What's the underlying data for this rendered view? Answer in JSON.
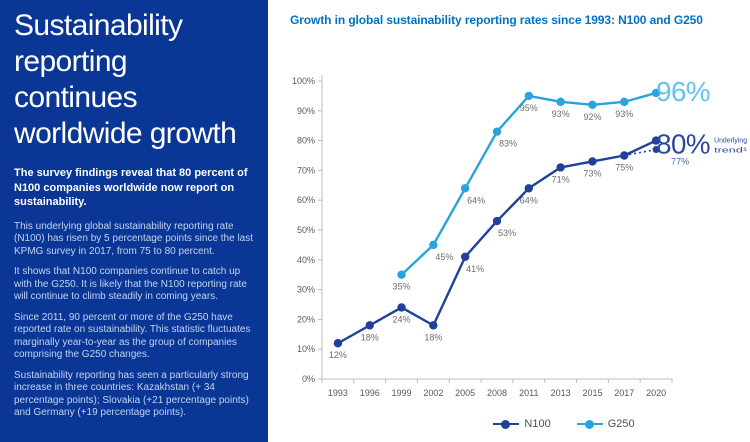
{
  "left_panel": {
    "background": "#0a3796",
    "title_lines": [
      "Sustainability",
      "reporting",
      "continues",
      "worldwide growth"
    ],
    "lead": "The survey findings reveal that 80 percent of N100 companies worldwide now report on sustainability.",
    "paragraphs": [
      "This underlying global sustainability reporting rate (N100) has risen by 5 percentage points since the last KPMG survey in 2017, from 75 to 80 percent.",
      "It shows that N100 companies continue to catch up with the G250. It is likely that the N100 reporting rate will continue to climb steadily in coming years.",
      "Since 2011, 90 percent or more of the G250 have reported rate on sustainability. This statistic fluctuates marginally year-to-year as the group of companies comprising the G250 changes.",
      "Sustainability reporting has seen a particularly strong increase in three countries: Kazakhstan (+ 34 percentage points); Slovakia (+21 percentage points) and Germany (+19 percentage points)."
    ]
  },
  "chart": {
    "title": "Growth in global sustainability reporting rates since 1993: N100 and G250",
    "title_color": "#0072c6"
  },
  "chart_data": {
    "type": "line",
    "title": "Growth in global sustainability reporting rates since 1993: N100 and G250",
    "categories": [
      "1993",
      "1996",
      "1999",
      "2002",
      "2005",
      "2008",
      "2011",
      "2013",
      "2015",
      "2017",
      "2020"
    ],
    "series": [
      {
        "name": "N100",
        "color": "#21409a",
        "values": [
          12,
          18,
          24,
          18,
          41,
          53,
          64,
          71,
          73,
          75,
          80
        ],
        "labels": [
          "12%",
          "18%",
          "24%",
          "18%",
          "41%",
          "53%",
          "64%",
          "71%",
          "73%",
          "75%",
          ""
        ]
      },
      {
        "name": "G250",
        "color": "#29a3dc",
        "values": [
          null,
          null,
          35,
          45,
          64,
          83,
          95,
          93,
          92,
          93,
          96
        ],
        "labels": [
          "",
          "",
          "35%",
          "45%",
          "64%",
          "83%",
          "95%",
          "93%",
          "92%",
          "93%",
          ""
        ]
      }
    ],
    "underlying_trend": {
      "from_category": "2017",
      "from_value": 75,
      "category": "2020",
      "value": 77,
      "label": "77%",
      "label_color": "#4a69b4",
      "note_lines": [
        "Underlying",
        "trend¹"
      ]
    },
    "highlights": [
      {
        "series": "G250",
        "text": "96%",
        "color": "#5fc4ee"
      },
      {
        "series": "N100",
        "text": "80%",
        "color": "#2b479f"
      }
    ],
    "xlabel": "",
    "ylabel": "",
    "ylim": [
      0,
      100
    ],
    "ytick_step": 10,
    "ytick_suffix": "%",
    "grid": false,
    "legend_position": "bottom",
    "axis_color": "#bcbcbc",
    "label_color": "#6d6e71",
    "tick_label_color": "#58595b"
  }
}
